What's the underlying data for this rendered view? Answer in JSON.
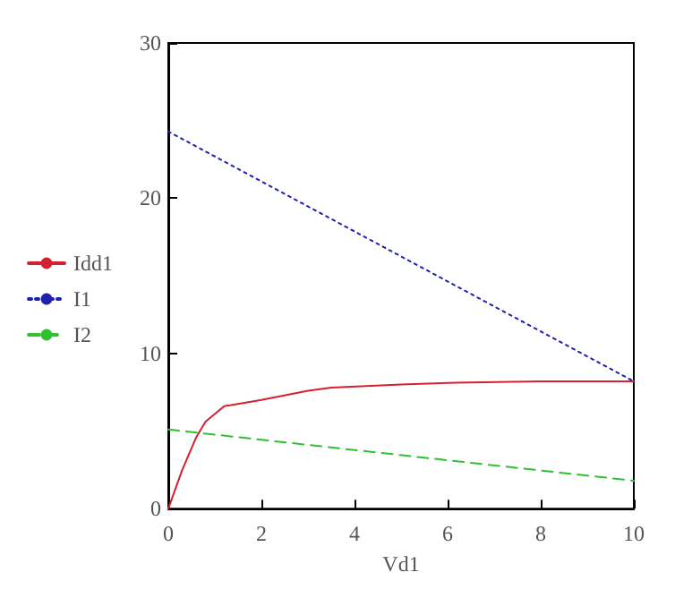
{
  "chart_data": {
    "type": "line",
    "xlabel": "Vd1",
    "xlim": [
      0,
      10
    ],
    "xticks": [
      0,
      2,
      4,
      6,
      8,
      10
    ],
    "ylim": [
      0,
      30
    ],
    "yticks": [
      0,
      10,
      20,
      30
    ],
    "grid": false,
    "legend": "left",
    "marker": "none",
    "series": [
      {
        "name": "Idd1",
        "color": "#d42030",
        "line_style": "solid",
        "x": [
          0,
          0.3,
          0.6,
          0.8,
          1.2,
          2,
          3,
          3.5,
          5,
          6,
          8,
          10
        ],
        "values": [
          0,
          2.5,
          4.6,
          5.6,
          6.6,
          7.0,
          7.6,
          7.8,
          8.0,
          8.1,
          8.2,
          8.2
        ]
      },
      {
        "name": "I1",
        "color": "#2020b0",
        "line_style": "dotted",
        "x": [
          0,
          10
        ],
        "values": [
          24.3,
          8.2
        ]
      },
      {
        "name": "I2",
        "color": "#30c030",
        "line_style": "dashed",
        "x": [
          0,
          10
        ],
        "values": [
          5.1,
          1.8
        ]
      }
    ]
  }
}
